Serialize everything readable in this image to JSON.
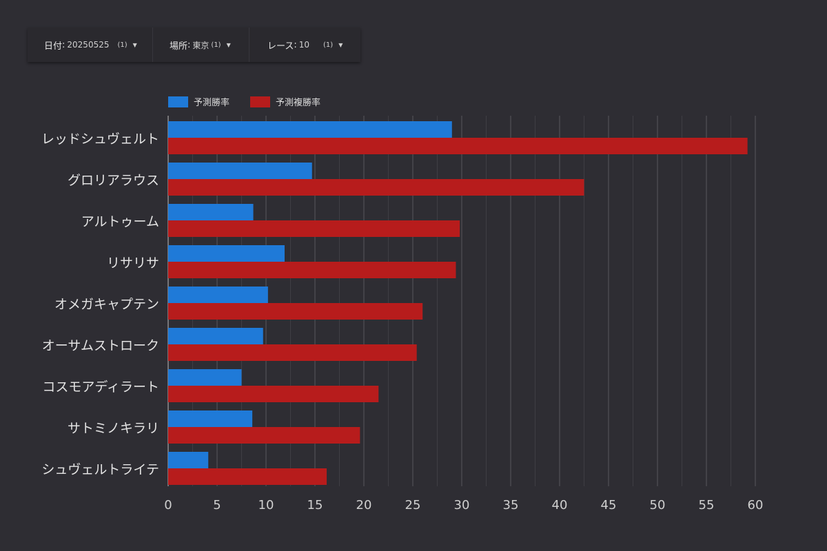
{
  "filters": [
    {
      "label": "日付",
      "sep": ":",
      "value": "20250525",
      "count": "(1)"
    },
    {
      "label": "場所",
      "sep": ":",
      "value": "東京",
      "count": "(1)"
    },
    {
      "label": "レース",
      "sep": ":",
      "value": "10",
      "count": "(1)"
    }
  ],
  "colors": {
    "background": "#2e2d33",
    "series_win": "#1f7ad8",
    "series_place": "#b71c1c",
    "grid": "#4d4c52",
    "text": "#dcdcdc"
  },
  "chart_data": {
    "type": "bar",
    "orientation": "horizontal",
    "categories": [
      "レッドシュヴェルト",
      "グロリアラウス",
      "アルトゥーム",
      "リサリサ",
      "オメガキャプテン",
      "オーサムストローク",
      "コスモアディラート",
      "サトミノキラリ",
      "シュヴェルトライテ"
    ],
    "series": [
      {
        "name": "予測勝率",
        "values": [
          29.0,
          14.7,
          8.7,
          11.9,
          10.2,
          9.7,
          7.5,
          8.6,
          4.1
        ]
      },
      {
        "name": "予測複勝率",
        "values": [
          59.2,
          42.5,
          29.8,
          29.4,
          26.0,
          25.4,
          21.5,
          19.6,
          16.2
        ]
      }
    ],
    "xlim": [
      0,
      60
    ],
    "xticks": [
      0,
      5,
      10,
      15,
      20,
      25,
      30,
      35,
      40,
      45,
      50,
      55,
      60
    ],
    "grid": true,
    "legend": "top-left",
    "xlabel": "",
    "ylabel": ""
  }
}
